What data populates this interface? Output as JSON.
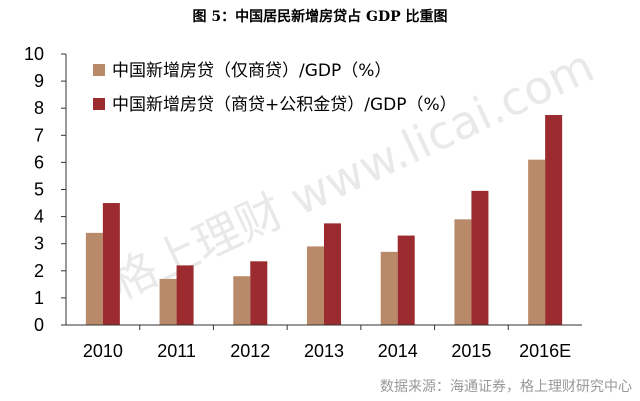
{
  "chart_data": {
    "type": "bar",
    "title": "图 5：中国居民新增房贷占 GDP 比重图",
    "xlabel": "",
    "ylabel": "",
    "ylim": [
      0,
      10
    ],
    "yticks": [
      0,
      1,
      2,
      3,
      4,
      5,
      6,
      7,
      8,
      9,
      10
    ],
    "grid": false,
    "legend_position": "top-left",
    "categories": [
      "2010",
      "2011",
      "2012",
      "2013",
      "2014",
      "2015",
      "2016E"
    ],
    "series": [
      {
        "name": "中国新增房贷（仅商贷）/GDP（%）",
        "color": "#b98a6a",
        "values": [
          3.4,
          1.7,
          1.8,
          2.9,
          2.7,
          3.9,
          6.1
        ]
      },
      {
        "name": "中国新增房贷（商贷+公积金贷）/GDP（%）",
        "color": "#9b2b2e",
        "values": [
          4.5,
          2.2,
          2.35,
          3.75,
          3.3,
          4.95,
          7.75
        ]
      }
    ]
  },
  "watermark": "格上理财 www.licai.com",
  "source": "数据来源：海通证券，格上理财研究中心"
}
